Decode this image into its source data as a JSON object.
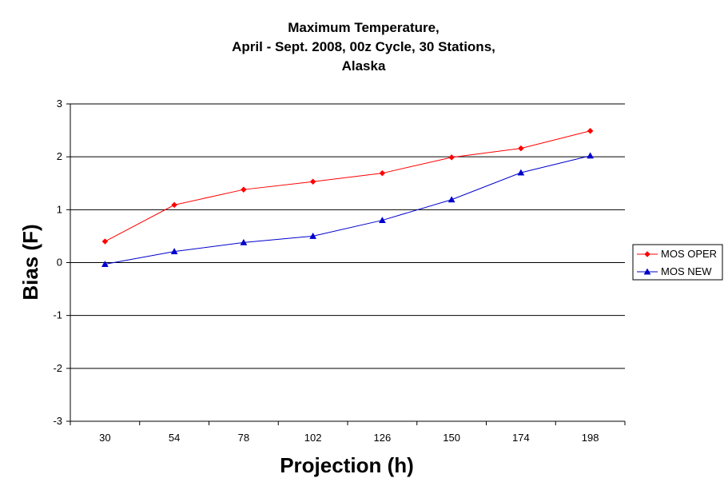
{
  "chart_data": {
    "type": "line",
    "title": [
      "Maximum Temperature,",
      "April - Sept. 2008, 00z Cycle, 30 Stations,",
      "Alaska"
    ],
    "xlabel": "Projection (h)",
    "ylabel": "Bias (F)",
    "categories": [
      "30",
      "54",
      "78",
      "102",
      "126",
      "150",
      "174",
      "198"
    ],
    "ylim": [
      -3,
      3
    ],
    "yticks": [
      "3",
      "2",
      "1",
      "0",
      "-1",
      "-2",
      "-3"
    ],
    "grid": "horizontal",
    "legend_position": "right",
    "series": [
      {
        "name": "MOS OPER",
        "color": "#ff0000",
        "marker": "diamond",
        "values": [
          0.4,
          1.09,
          1.38,
          1.53,
          1.69,
          1.99,
          2.16,
          2.49
        ]
      },
      {
        "name": "MOS NEW",
        "color": "#0000cc",
        "marker": "triangle",
        "values": [
          -0.03,
          0.21,
          0.38,
          0.5,
          0.8,
          1.19,
          1.7,
          2.02
        ]
      }
    ]
  }
}
